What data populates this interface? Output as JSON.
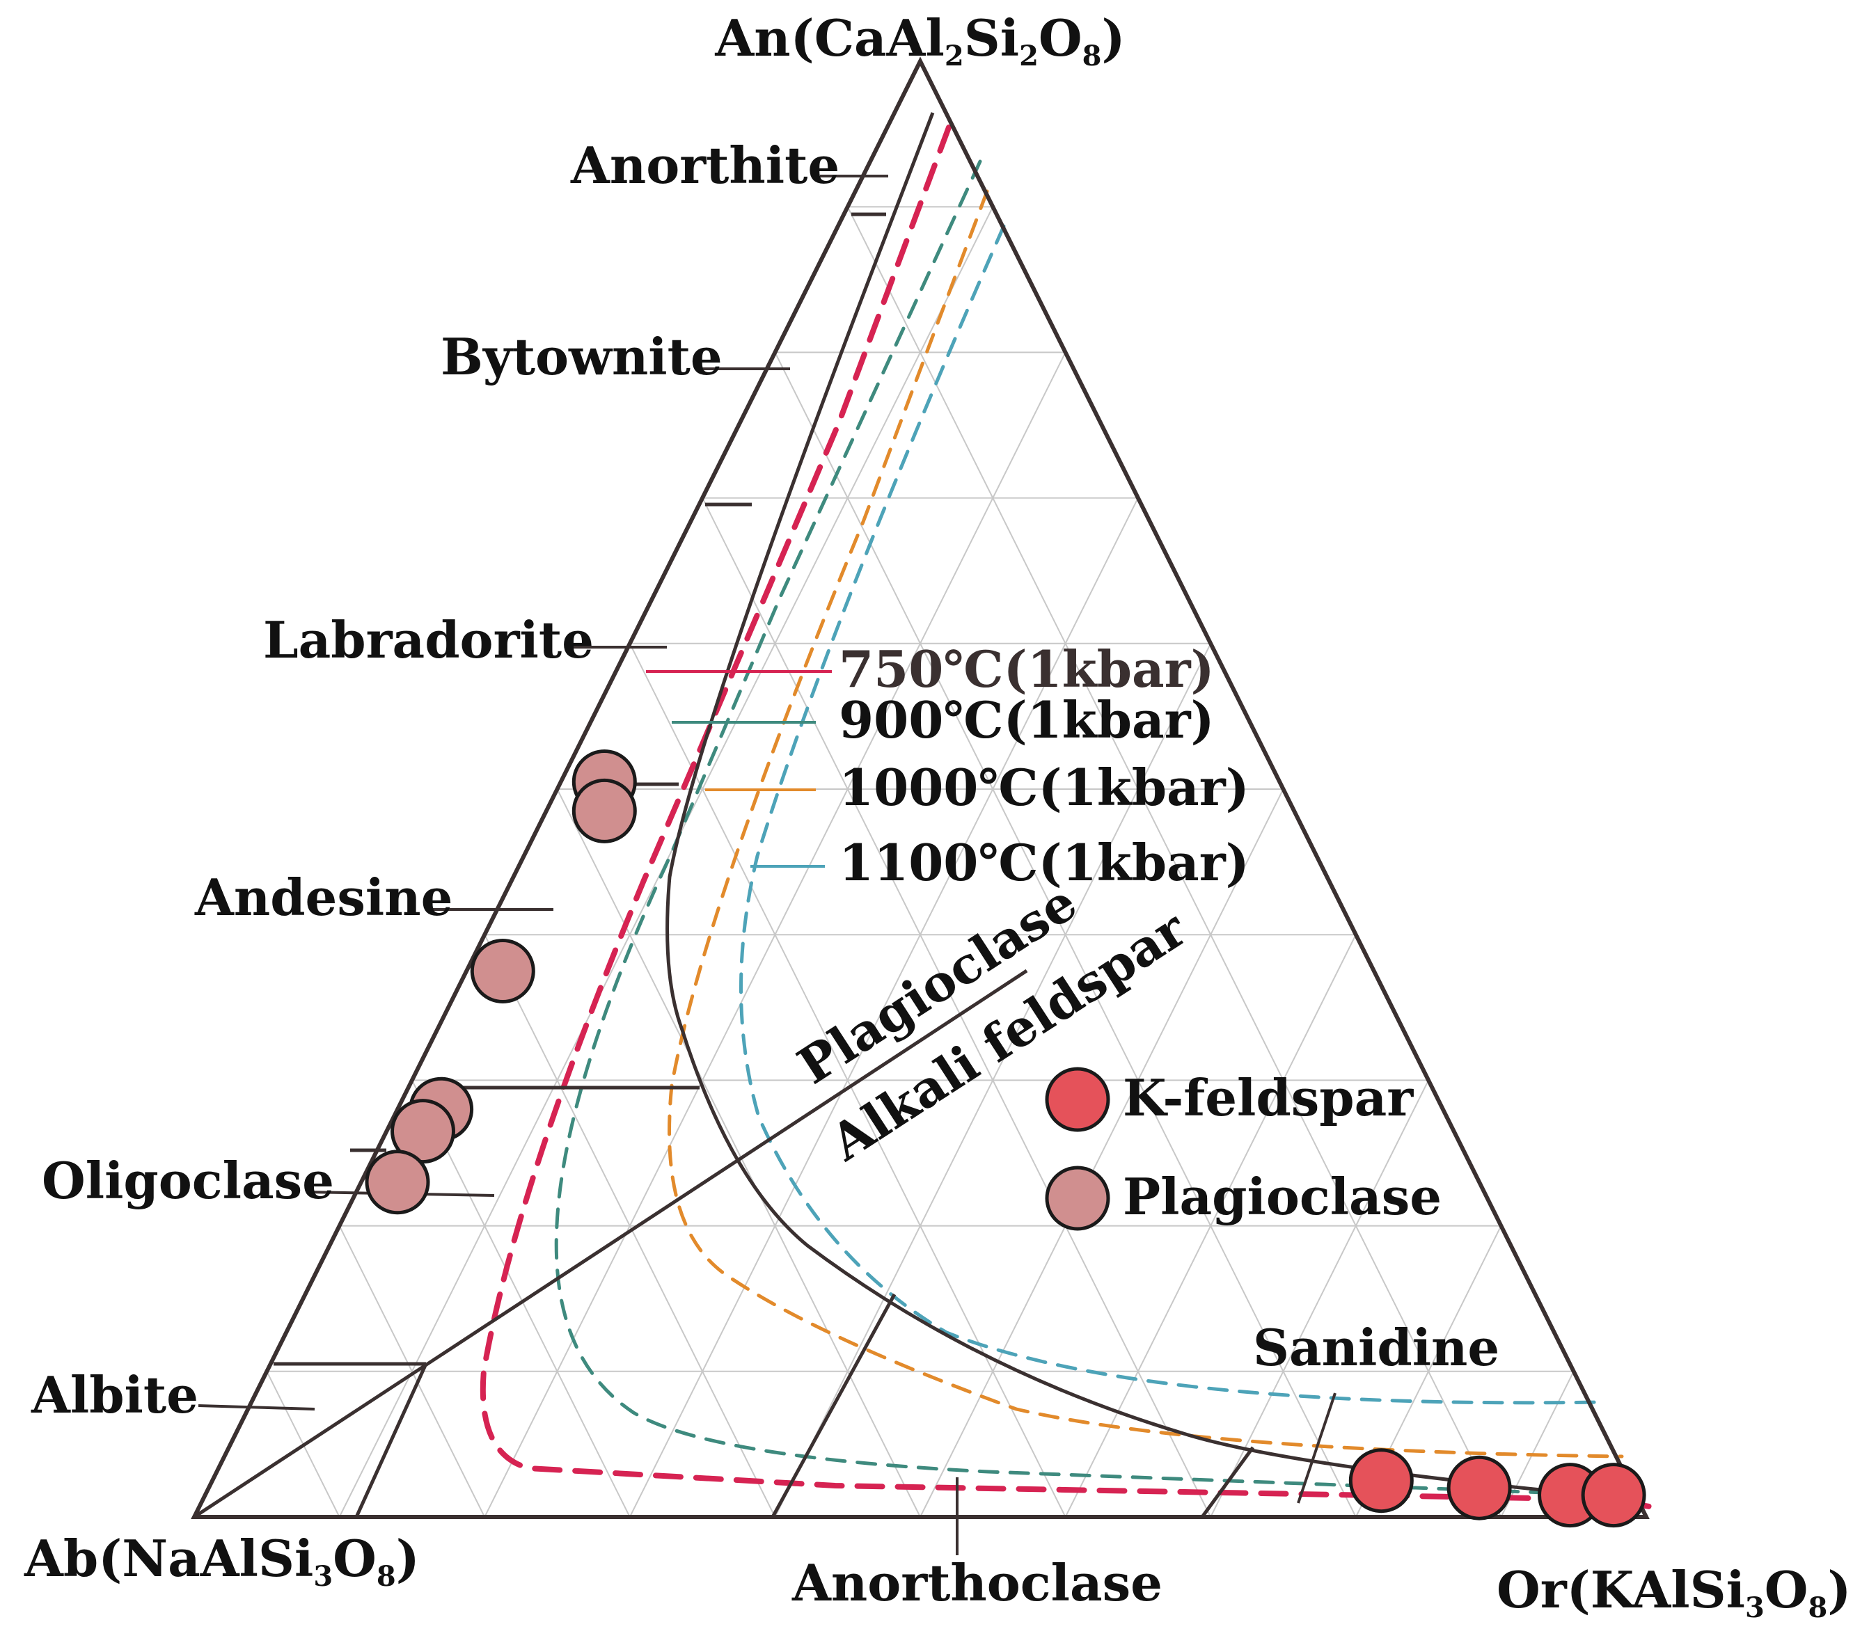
{
  "vertices": {
    "top": {
      "main": "An(CaAl",
      "parts": [
        [
          "2",
          "sub"
        ],
        [
          "Si",
          "main"
        ],
        [
          "2",
          "sub"
        ],
        [
          "O",
          "main"
        ],
        [
          "8",
          "sub"
        ],
        [
          ")",
          "main"
        ]
      ],
      "text": "An(CaAl2Si2O8)"
    },
    "left": {
      "main": "Ab(NaAlSi",
      "parts": [
        [
          "3",
          "sub"
        ],
        [
          "O",
          "main"
        ],
        [
          "8",
          "sub"
        ],
        [
          ")",
          "main"
        ]
      ],
      "text": "Ab(NaAlSi3O8)"
    },
    "right": {
      "main": "Or(KAlSi",
      "parts": [
        [
          "3",
          "sub"
        ],
        [
          "O",
          "main"
        ],
        [
          "8",
          "sub"
        ],
        [
          ")",
          "main"
        ]
      ],
      "text": "Or(KAlSi3O8)"
    }
  },
  "mineral_labels": {
    "anorthite": "Anorthite",
    "bytownite": "Bytownite",
    "labradorite": "Labradorite",
    "andesine": "Andesine",
    "oligoclase": "Oligoclase",
    "albite": "Albite",
    "anorthoclase": "Anorthoclase",
    "sanidine": "Sanidine"
  },
  "field_labels": {
    "plagioclase": "Plagioclase",
    "alkali_feldspar": "Alkali feldspar"
  },
  "isotherms": [
    {
      "label": "750℃(1kbar)",
      "color": "#d62352"
    },
    {
      "label": "900℃(1kbar)",
      "color": "#3e8a7e"
    },
    {
      "label": "1000℃(1kbar)",
      "color": "#e28a2b"
    },
    {
      "label": "1100℃(1kbar)",
      "color": "#4da3b8"
    }
  ],
  "legend": [
    {
      "label": "K-feldspar",
      "color": "#e5525a"
    },
    {
      "label": "Plagioclase",
      "color": "#d08f8f"
    }
  ],
  "colors": {
    "frame": "#3a3030",
    "grid": "#c8c8c8",
    "marker_stroke": "#1a1a1a"
  },
  "chart_data": {
    "type": "scatter",
    "axes": [
      "An",
      "Ab",
      "Or"
    ],
    "grid_step_percent": 10,
    "series": [
      {
        "name": "K-feldspar",
        "points": [
          {
            "An": 2.5,
            "Ab": 17,
            "Or": 80.5
          },
          {
            "An": 2,
            "Ab": 10.5,
            "Or": 87.5
          },
          {
            "An": 1.5,
            "Ab": 4.5,
            "Or": 94
          },
          {
            "An": 1.5,
            "Ab": 1.5,
            "Or": 97
          }
        ]
      },
      {
        "name": "Plagioclase",
        "points": [
          {
            "An": 50.5,
            "Ab": 46.5,
            "Or": 3
          },
          {
            "An": 48.5,
            "Ab": 47.5,
            "Or": 4
          },
          {
            "An": 37.5,
            "Ab": 60,
            "Or": 2.5
          },
          {
            "An": 28,
            "Ab": 69,
            "Or": 3
          },
          {
            "An": 26.5,
            "Ab": 71,
            "Or": 2.5
          },
          {
            "An": 23,
            "Ab": 74.5,
            "Or": 2.5
          }
        ]
      }
    ]
  }
}
